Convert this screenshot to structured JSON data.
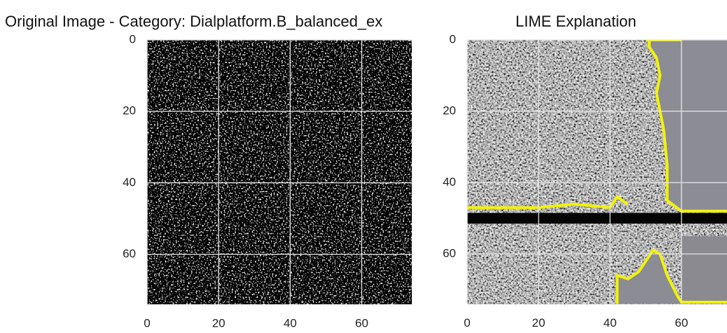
{
  "chart_data": [
    {
      "type": "image",
      "title": "Original Image - Category: Dialplatform.B_balanced_ex",
      "xlim": [
        0,
        74
      ],
      "ylim": [
        74,
        0
      ],
      "xticks": [
        0,
        20,
        40,
        60
      ],
      "yticks": [
        0,
        20,
        40,
        60
      ],
      "grid": true
    },
    {
      "type": "image",
      "title": "LIME Explanation",
      "xlim": [
        0,
        74
      ],
      "ylim": [
        74,
        0
      ],
      "xticks": [
        0,
        20,
        40,
        60
      ],
      "yticks": [
        0,
        20,
        40,
        60
      ],
      "grid": true
    }
  ]
}
